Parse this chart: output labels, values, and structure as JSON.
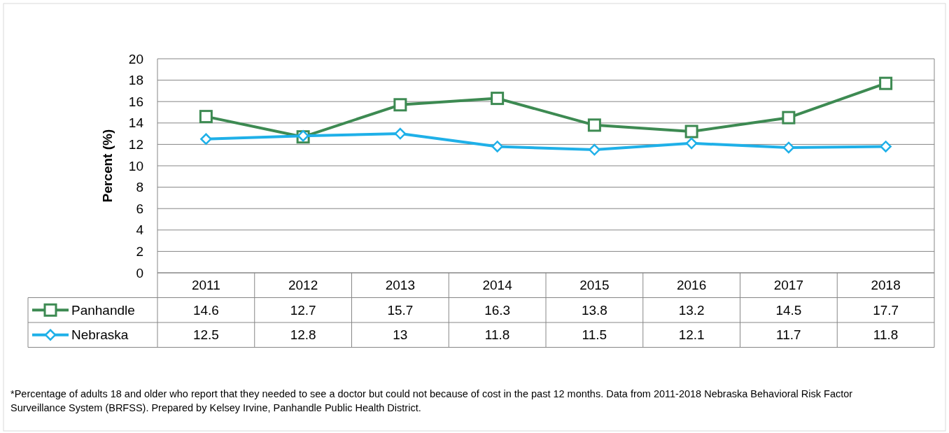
{
  "chart_data": {
    "type": "line",
    "ylabel": "Percent (%)",
    "categories": [
      "2011",
      "2012",
      "2013",
      "2014",
      "2015",
      "2016",
      "2017",
      "2018"
    ],
    "series": [
      {
        "name": "Panhandle",
        "color": "#3d8a52",
        "marker": "square",
        "values": [
          14.6,
          12.7,
          15.7,
          16.3,
          13.8,
          13.2,
          14.5,
          17.7
        ]
      },
      {
        "name": "Nebraska",
        "color": "#1fb0e8",
        "marker": "diamond",
        "values": [
          12.5,
          12.8,
          13,
          11.8,
          11.5,
          12.1,
          11.7,
          11.8
        ]
      }
    ],
    "ylim": [
      0,
      20
    ],
    "yticks": [
      0,
      2,
      4,
      6,
      8,
      10,
      12,
      14,
      16,
      18,
      20
    ],
    "grid": "y",
    "legend": "bottom",
    "data_labels": true,
    "line_style": "solid",
    "annotations": [
      "*Percentage of adults 18 and older who report that they needed to see a doctor but could not because of cost in the past 12 months. Data from 2011-2018 Nebraska Behavioral Risk Factor Surveillance System (BRFSS). Prepared by Kelsey Irvine, Panhandle Public Health District."
    ]
  }
}
